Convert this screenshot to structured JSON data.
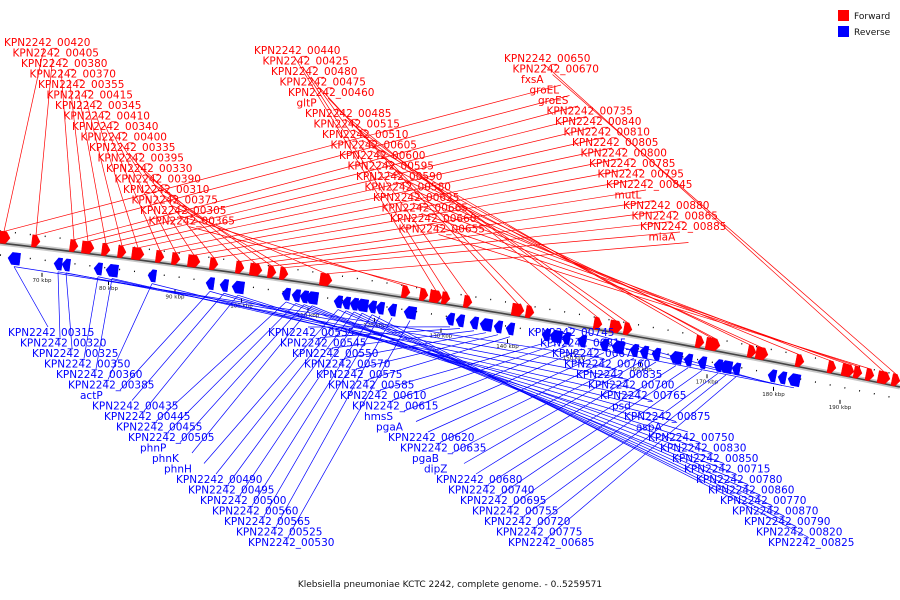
{
  "legend": {
    "forward": {
      "label": "Forward",
      "color": "#ff0000"
    },
    "reverse": {
      "label": "Reverse",
      "color": "#0000ff"
    }
  },
  "caption": "Klebsiella pneumoniae KCTC 2242, complete genome. - 0..5259571",
  "axis_ticks": [
    "70 kbp",
    "80 kbp",
    "90 kbp",
    "100 kbp",
    "110 kbp",
    "120 kbp",
    "130 kbp",
    "140 kbp",
    "150 kbp",
    "160 kbp",
    "170 kbp",
    "180 kbp",
    "190 kbp"
  ],
  "forward_labels": [
    "KPN2242_00420",
    "KPN2242_00405",
    "KPN2242_00380",
    "KPN2242_00370",
    "KPN2242_00355",
    "KPN2242_00415",
    "KPN2242_00345",
    "KPN2242_00410",
    "KPN2242_00340",
    "KPN2242_00400",
    "KPN2242_00335",
    "KPN2242_00395",
    "KPN2242_00330",
    "KPN2242_00390",
    "KPN2242_00310",
    "KPN2242_00375",
    "KPN2242_00305",
    "KPN2242_00365",
    "KPN2242_00440",
    "KPN2242_00425",
    "KPN2242_00480",
    "KPN2242_00475",
    "KPN2242_00460",
    "gltP",
    "KPN2242_00485",
    "KPN2242_00515",
    "KPN2242_00510",
    "KPN2242_00605",
    "KPN2242_00600",
    "KPN2242_00595",
    "KPN2242_00590",
    "KPN2242_00580",
    "KPN2242_00625",
    "KPN2242_00665",
    "KPN2242_00660",
    "KPN2242_00655",
    "KPN2242_00650",
    "KPN2242_00670",
    "fxsA",
    "groEL",
    "groES",
    "KPN2242_00735",
    "KPN2242_00840",
    "KPN2242_00810",
    "KPN2242_00805",
    "KPN2242_00800",
    "KPN2242_00785",
    "KPN2242_00795",
    "KPN2242_00845",
    "mutL",
    "KPN2242_00880",
    "KPN2242_00865",
    "KPN2242_00885",
    "miaA"
  ],
  "reverse_labels": [
    "KPN2242_00315",
    "KPN2242_00320",
    "KPN2242_00325",
    "KPN2242_00350",
    "KPN2242_00360",
    "KPN2242_00385",
    "actP",
    "KPN2242_00435",
    "KPN2242_00445",
    "KPN2242_00455",
    "KPN2242_00505",
    "phnP",
    "phnK",
    "phnH",
    "KPN2242_00490",
    "KPN2242_00495",
    "KPN2242_00500",
    "KPN2242_00560",
    "KPN2242_00565",
    "KPN2242_00525",
    "KPN2242_00530",
    "KPN2242_00535",
    "KPN2242_00545",
    "KPN2242_00550",
    "KPN2242_00570",
    "KPN2242_00575",
    "KPN2242_00585",
    "KPN2242_00610",
    "KPN2242_00615",
    "hmsS",
    "pgaA",
    "KPN2242_00620",
    "KPN2242_00635",
    "pgaB",
    "dipZ",
    "KPN2242_00680",
    "KPN2242_00740",
    "KPN2242_00695",
    "KPN2242_00755",
    "KPN2242_00720",
    "KPN2242_00775",
    "KPN2242_00685",
    "KPN2242_00745",
    "KPN2242_00815",
    "KPN2242_00675",
    "KPN2242_00760",
    "KPN2242_00835",
    "KPN2242_00700",
    "KPN2242_00765",
    "psd",
    "KPN2242_00875",
    "aspA",
    "KPN2242_00750",
    "KPN2242_00830",
    "KPN2242_00850",
    "KPN2242_00715",
    "KPN2242_00780",
    "KPN2242_00860",
    "KPN2242_00770",
    "KPN2242_00870",
    "KPN2242_00790",
    "KPN2242_00820",
    "KPN2242_00825"
  ]
}
